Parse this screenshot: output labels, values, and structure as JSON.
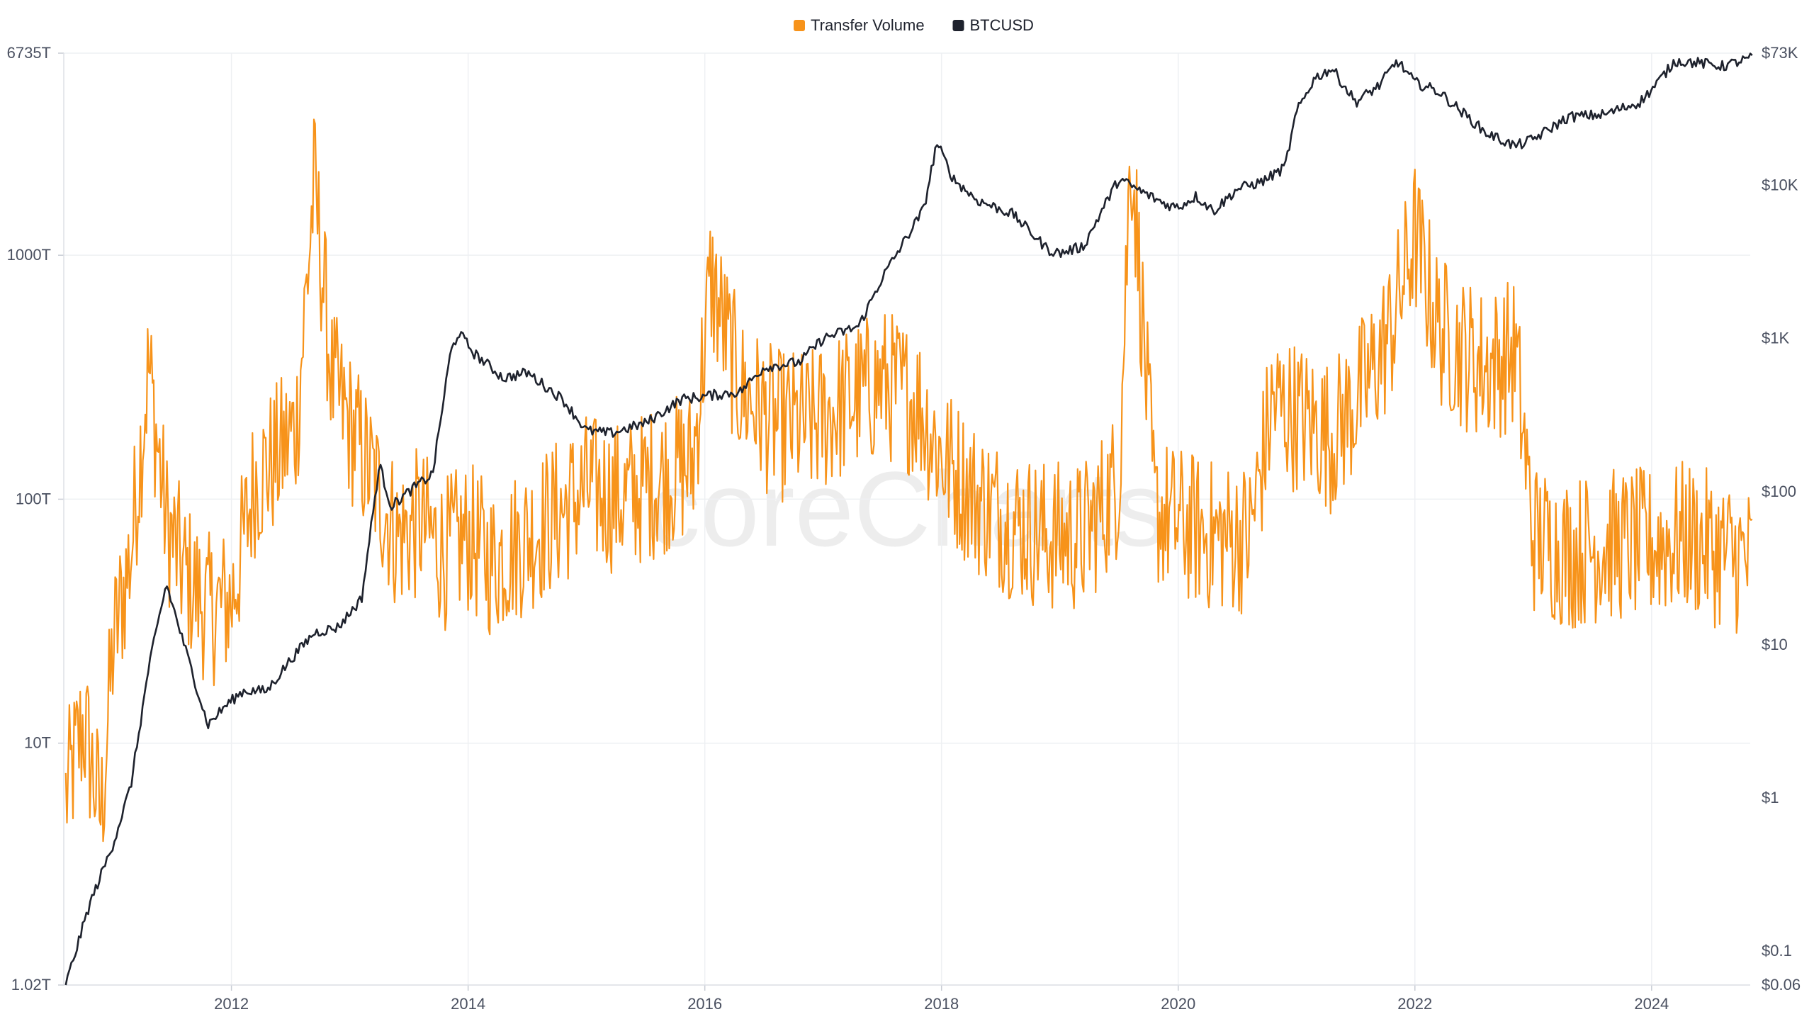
{
  "chart_data": {
    "type": "line",
    "title": "",
    "legend": {
      "placement": "top-center",
      "entries": [
        {
          "name": "Transfer Volume",
          "color": "#f7931a"
        },
        {
          "name": "BTCUSD",
          "color": "#1e222d"
        }
      ]
    },
    "watermark": "coreCharts",
    "x_axis": {
      "range": [
        "2010-08",
        "2024-11"
      ],
      "ticks": [
        "2012",
        "2014",
        "2016",
        "2018",
        "2020",
        "2022",
        "2024"
      ],
      "tick_years": [
        2012,
        2014,
        2016,
        2018,
        2020,
        2022,
        2024
      ]
    },
    "y_left": {
      "scale": "log",
      "unit": "T",
      "range": [
        1.02,
        6735
      ],
      "ticks": [
        {
          "value": 1.02,
          "label": "1.02T"
        },
        {
          "value": 10,
          "label": "10T"
        },
        {
          "value": 100,
          "label": "100T"
        },
        {
          "value": 1000,
          "label": "1000T"
        },
        {
          "value": 6735,
          "label": "6735T"
        }
      ]
    },
    "y_right": {
      "scale": "log",
      "unit": "USD",
      "range": [
        0.06,
        73000
      ],
      "ticks": [
        {
          "value": 0.06,
          "label": "$0.06"
        },
        {
          "value": 0.1,
          "label": "$0.1"
        },
        {
          "value": 1,
          "label": "$1"
        },
        {
          "value": 10,
          "label": "$10"
        },
        {
          "value": 100,
          "label": "$100"
        },
        {
          "value": 1000,
          "label": "$1K"
        },
        {
          "value": 10000,
          "label": "$10K"
        },
        {
          "value": 73000,
          "label": "$73K"
        }
      ]
    },
    "grid": true,
    "series": [
      {
        "name": "Transfer Volume",
        "color": "#f7931a",
        "axis": "left",
        "x": [
          2010.6,
          2010.75,
          2010.9,
          2011.0,
          2011.15,
          2011.3,
          2011.45,
          2011.6,
          2011.8,
          2012.0,
          2012.2,
          2012.4,
          2012.55,
          2012.7,
          2012.85,
          2013.0,
          2013.2,
          2013.4,
          2013.6,
          2013.8,
          2014.0,
          2014.2,
          2014.5,
          2014.8,
          2015.0,
          2015.3,
          2015.6,
          2015.9,
          2016.05,
          2016.3,
          2016.6,
          2016.9,
          2017.2,
          2017.5,
          2017.8,
          2018.0,
          2018.3,
          2018.6,
          2018.9,
          2019.2,
          2019.5,
          2019.6,
          2019.8,
          2020.0,
          2020.3,
          2020.6,
          2020.8,
          2021.0,
          2021.3,
          2021.6,
          2021.8,
          2022.0,
          2022.2,
          2022.4,
          2022.6,
          2022.85,
          2023.0,
          2023.3,
          2023.6,
          2024.0,
          2024.3,
          2024.6,
          2024.85
        ],
        "values": [
          6,
          12,
          5,
          25,
          60,
          350,
          80,
          50,
          35,
          38,
          120,
          150,
          200,
          2000,
          300,
          200,
          120,
          70,
          80,
          60,
          70,
          55,
          70,
          90,
          110,
          100,
          120,
          140,
          800,
          280,
          200,
          200,
          250,
          300,
          250,
          150,
          100,
          80,
          70,
          70,
          120,
          3000,
          90,
          80,
          70,
          70,
          250,
          220,
          180,
          300,
          500,
          1200,
          500,
          400,
          350,
          400,
          70,
          60,
          65,
          65,
          70,
          60,
          55
        ]
      },
      {
        "name": "BTCUSD",
        "color": "#1e222d",
        "axis": "right",
        "x": [
          2010.6,
          2010.8,
          2011.0,
          2011.15,
          2011.3,
          2011.45,
          2011.6,
          2011.8,
          2011.95,
          2012.1,
          2012.3,
          2012.5,
          2012.7,
          2012.9,
          2013.1,
          2013.25,
          2013.35,
          2013.5,
          2013.7,
          2013.85,
          2013.92,
          2014.05,
          2014.3,
          2014.5,
          2014.8,
          2015.0,
          2015.2,
          2015.5,
          2015.8,
          2016.0,
          2016.3,
          2016.5,
          2016.8,
          2017.0,
          2017.3,
          2017.5,
          2017.7,
          2017.85,
          2017.96,
          2018.1,
          2018.3,
          2018.6,
          2018.9,
          2019.0,
          2019.2,
          2019.4,
          2019.5,
          2019.7,
          2019.9,
          2020.0,
          2020.15,
          2020.3,
          2020.5,
          2020.7,
          2020.9,
          2021.0,
          2021.15,
          2021.3,
          2021.5,
          2021.7,
          2021.85,
          2022.0,
          2022.2,
          2022.4,
          2022.6,
          2022.85,
          2023.0,
          2023.3,
          2023.6,
          2023.9,
          2024.0,
          2024.2,
          2024.4,
          2024.6,
          2024.85
        ],
        "values": [
          0.06,
          0.2,
          0.5,
          1.2,
          7,
          25,
          10,
          3,
          4,
          5,
          5,
          8,
          12,
          13,
          20,
          150,
          80,
          100,
          130,
          800,
          1100,
          800,
          550,
          600,
          400,
          250,
          240,
          280,
          400,
          420,
          450,
          650,
          700,
          1000,
          1200,
          2500,
          4500,
          7000,
          19000,
          11000,
          8000,
          6500,
          3800,
          3600,
          4000,
          8000,
          11000,
          9000,
          7500,
          7200,
          8500,
          6800,
          9500,
          10500,
          13000,
          30000,
          50000,
          58000,
          35000,
          45000,
          65000,
          47000,
          41000,
          30000,
          22000,
          18000,
          20000,
          28000,
          29000,
          35000,
          42000,
          65000,
          63000,
          60000,
          68000
        ]
      }
    ]
  }
}
